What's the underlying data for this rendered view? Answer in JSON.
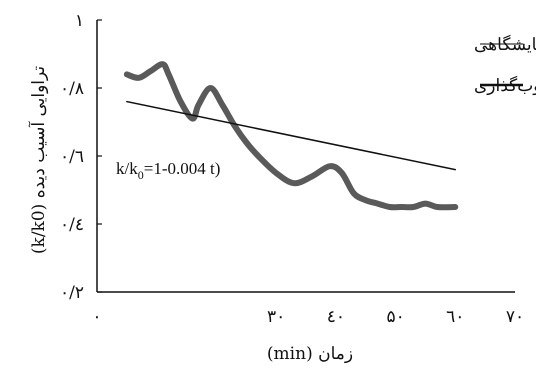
{
  "chart_data": {
    "type": "line",
    "xlabel": "زمان (min)",
    "ylabel": "تراوایی آسیب دیده (k/k0)",
    "xlim": [
      0,
      70
    ],
    "ylim": [
      0.2,
      1.0
    ],
    "x_ticks": [
      0,
      30,
      40,
      50,
      60,
      70
    ],
    "x_tick_labels": [
      "۰",
      "۳۰",
      "٤۰",
      "۵۰",
      "٦۰",
      "۷۰"
    ],
    "y_ticks": [
      0.2,
      0.4,
      0.6,
      0.8,
      1.0
    ],
    "y_tick_labels": [
      "۰/۲",
      "۰/٤",
      "۰/٦",
      "۰/۸",
      "۱"
    ],
    "grid": false,
    "legend_position": "top-right",
    "series": [
      {
        "name": "داده‌های آزمایشگاهی",
        "style": "thick",
        "color": "#5a5a5a",
        "x": [
          5,
          7,
          9,
          11,
          12,
          14,
          16,
          17,
          19,
          21,
          23,
          25,
          27,
          30,
          33,
          36,
          39,
          41,
          43,
          45,
          47,
          49,
          51,
          53,
          55,
          57,
          60
        ],
        "y": [
          0.84,
          0.83,
          0.85,
          0.87,
          0.84,
          0.76,
          0.71,
          0.75,
          0.8,
          0.75,
          0.69,
          0.64,
          0.6,
          0.55,
          0.52,
          0.54,
          0.57,
          0.55,
          0.49,
          0.47,
          0.46,
          0.45,
          0.45,
          0.45,
          0.46,
          0.45,
          0.45
        ]
      },
      {
        "name": "مکانیزم رسوب‌گذاری",
        "style": "thin",
        "color": "#111111",
        "x": [
          5,
          60
        ],
        "y": [
          0.76,
          0.56
        ]
      }
    ],
    "annotation": "k/k0=1-0.004 t)"
  }
}
